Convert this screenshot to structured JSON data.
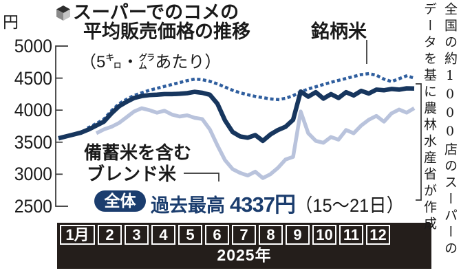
{
  "title": {
    "line1": "スーパーでのコメの",
    "line2": "平均販売価格の推移",
    "subtitle": "（5㌔・㌘あたり）"
  },
  "unit_label": "円",
  "labels": {
    "brand": "銘柄米",
    "blend_line1": "備蓄米を含む",
    "blend_line2": "ブレンド米"
  },
  "highlight": {
    "badge": "全体",
    "prefix": "過去最高",
    "price": "4337円",
    "note": "（15～21日）"
  },
  "source_note": {
    "col1": "全国の約1000店のスーパーの",
    "col2": "データを基に農林水産省が作成"
  },
  "colors": {
    "overall_line": "#17365e",
    "brand_line": "#2f5e9e",
    "blend_line": "#b9c3dc",
    "navy_text": "#1b3d6e",
    "band_black": "#241e1b"
  },
  "chart_data": {
    "type": "line",
    "title": "スーパーでのコメの平均販売価格の推移（5キログラムあたり）",
    "ylabel": "円",
    "ylim": [
      2500,
      5000
    ],
    "yticks": [
      5000,
      4500,
      4000,
      3500,
      3000,
      2500
    ],
    "x_months": [
      "1月",
      "2",
      "3",
      "4",
      "5",
      "6",
      "7",
      "8",
      "9",
      "10",
      "11",
      "12"
    ],
    "year": "2025年",
    "x_unit": "week (4 per month, 2025)",
    "grid": false,
    "legend_position": "inline-labels",
    "annotations": [
      {
        "target": "全体",
        "text": "過去最高 4337円（15～21日）",
        "value": 4337
      },
      {
        "target": "銘柄米",
        "text": "銘柄米"
      },
      {
        "target": "備蓄米を含むブレンド米",
        "text": "備蓄米を含むブレンド米"
      }
    ],
    "series": [
      {
        "id": "overall",
        "name": "全体",
        "style": "solid",
        "color": "#17365e",
        "stroke_width": 6.5,
        "values": [
          3560,
          3590,
          3620,
          3650,
          3700,
          3760,
          3820,
          3950,
          4060,
          4130,
          4190,
          4220,
          4235,
          4240,
          4250,
          4250,
          4255,
          4265,
          4285,
          4270,
          4240,
          4100,
          3840,
          3660,
          3590,
          3570,
          3610,
          3520,
          3620,
          3690,
          3740,
          3850,
          4290,
          4210,
          4280,
          4180,
          4250,
          4190,
          4280,
          4230,
          4300,
          4260,
          4320,
          4310,
          4330,
          4320,
          4340,
          4337
        ]
      },
      {
        "id": "brand",
        "name": "銘柄米",
        "style": "dotted",
        "color": "#2f5e9e",
        "stroke_width": 4.5,
        "values": [
          null,
          null,
          null,
          null,
          3730,
          3790,
          3860,
          3990,
          4100,
          4170,
          4230,
          4270,
          4310,
          4340,
          4370,
          4400,
          4430,
          4460,
          4485,
          4475,
          4450,
          4410,
          4360,
          4310,
          4270,
          4240,
          4215,
          4195,
          4175,
          4165,
          4185,
          4225,
          4285,
          4330,
          4365,
          4400,
          4435,
          4465,
          4495,
          4525,
          4555,
          4570,
          4545,
          4485,
          4445,
          4490,
          4535,
          4500
        ]
      },
      {
        "id": "blend",
        "name": "備蓄米を含むブレンド米",
        "style": "solid",
        "color": "#b9c3dc",
        "stroke_width": 5.5,
        "values": [
          null,
          null,
          null,
          null,
          null,
          3640,
          3700,
          3740,
          3800,
          3890,
          3980,
          4030,
          4000,
          3960,
          3990,
          3930,
          3900,
          3920,
          3880,
          3860,
          3700,
          3450,
          3220,
          3080,
          3020,
          2980,
          3040,
          2940,
          3000,
          3100,
          3230,
          3270,
          3980,
          3640,
          3520,
          3490,
          3580,
          3540,
          3690,
          3640,
          3760,
          3850,
          3910,
          3820,
          3950,
          4010,
          3960,
          4030
        ]
      }
    ]
  }
}
